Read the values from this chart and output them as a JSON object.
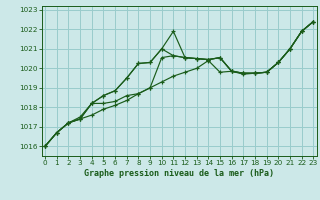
{
  "title": "Graphe pression niveau de la mer (hPa)",
  "bg_color": "#cce8e8",
  "grid_color": "#99cccc",
  "line_color": "#1a5c1a",
  "ylim": [
    1015.5,
    1023.2
  ],
  "yticks": [
    1016,
    1017,
    1018,
    1019,
    1020,
    1021,
    1022,
    1023
  ],
  "xlim": [
    -0.3,
    23.3
  ],
  "xticks": [
    0,
    1,
    2,
    3,
    4,
    5,
    6,
    7,
    8,
    9,
    10,
    11,
    12,
    13,
    14,
    15,
    16,
    17,
    18,
    19,
    20,
    21,
    22,
    23
  ],
  "series": [
    [
      1016.0,
      1016.7,
      1017.2,
      1017.4,
      1017.6,
      1017.9,
      1018.1,
      1018.35,
      1018.7,
      1019.0,
      1019.3,
      1019.6,
      1019.8,
      1020.0,
      1020.4,
      1019.8,
      1019.85,
      1019.7,
      1019.75,
      1019.8,
      1020.3,
      1021.0,
      1021.9,
      1022.4
    ],
    [
      1016.0,
      1016.7,
      1017.2,
      1017.4,
      1018.2,
      1018.2,
      1018.3,
      1018.6,
      1018.7,
      1019.0,
      1020.55,
      1020.65,
      1020.55,
      1020.5,
      1020.45,
      1020.55,
      1019.85,
      1019.75,
      1019.75,
      1019.8,
      1020.3,
      1021.0,
      1021.9,
      1022.4
    ],
    [
      1016.0,
      1016.7,
      1017.2,
      1017.4,
      1018.2,
      1018.6,
      1018.85,
      1019.5,
      1020.25,
      1020.3,
      1021.0,
      1020.65,
      1020.55,
      1020.5,
      1020.45,
      1020.55,
      1019.85,
      1019.75,
      1019.75,
      1019.8,
      1020.3,
      1021.0,
      1021.9,
      1022.4
    ],
    [
      1016.0,
      1016.7,
      1017.2,
      1017.5,
      1018.2,
      1018.6,
      1018.85,
      1019.5,
      1020.25,
      1020.3,
      1021.0,
      1021.9,
      1020.55,
      1020.5,
      1020.45,
      1020.55,
      1019.85,
      1019.75,
      1019.75,
      1019.8,
      1020.3,
      1021.0,
      1021.9,
      1022.4
    ]
  ]
}
